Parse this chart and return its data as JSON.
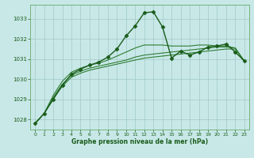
{
  "title": "Graphe pression niveau de la mer (hPa)",
  "background_color": "#c8e8e8",
  "grid_color": "#a0c8c8",
  "xlim": [
    -0.5,
    23.5
  ],
  "ylim": [
    1027.5,
    1033.7
  ],
  "yticks": [
    1028,
    1029,
    1030,
    1031,
    1032,
    1033
  ],
  "xticks": [
    0,
    1,
    2,
    3,
    4,
    5,
    6,
    7,
    8,
    9,
    10,
    11,
    12,
    13,
    14,
    15,
    16,
    17,
    18,
    19,
    20,
    21,
    22,
    23
  ],
  "series_main": [
    1027.8,
    1028.3,
    1029.0,
    1029.7,
    1030.25,
    1030.5,
    1030.7,
    1030.85,
    1031.1,
    1031.5,
    1032.15,
    1032.65,
    1033.3,
    1033.35,
    1032.6,
    1031.05,
    1031.4,
    1031.2,
    1031.35,
    1031.6,
    1031.65,
    1031.75,
    1031.35,
    1030.9
  ],
  "series_flat": [
    [
      1027.8,
      1028.3,
      1029.05,
      1029.65,
      1030.1,
      1030.3,
      1030.45,
      1030.55,
      1030.65,
      1030.75,
      1030.85,
      1030.95,
      1031.05,
      1031.1,
      1031.15,
      1031.2,
      1031.25,
      1031.3,
      1031.35,
      1031.4,
      1031.45,
      1031.5,
      1031.5,
      1030.9
    ],
    [
      1027.8,
      1028.3,
      1029.1,
      1029.75,
      1030.2,
      1030.4,
      1030.55,
      1030.65,
      1030.75,
      1030.85,
      1030.95,
      1031.1,
      1031.2,
      1031.25,
      1031.3,
      1031.35,
      1031.4,
      1031.45,
      1031.5,
      1031.55,
      1031.6,
      1031.6,
      1031.55,
      1030.9
    ],
    [
      1027.8,
      1028.3,
      1029.2,
      1029.9,
      1030.35,
      1030.55,
      1030.7,
      1030.8,
      1030.95,
      1031.15,
      1031.35,
      1031.55,
      1031.7,
      1031.7,
      1031.7,
      1031.65,
      1031.65,
      1031.65,
      1031.7,
      1031.7,
      1031.65,
      1031.65,
      1031.55,
      1030.9
    ]
  ],
  "color_main": "#1a5c1a",
  "color_flat": "#2e7d32",
  "marker": "D",
  "ms": 2.5,
  "lw_main": 1.0,
  "lw_flat": 0.8
}
